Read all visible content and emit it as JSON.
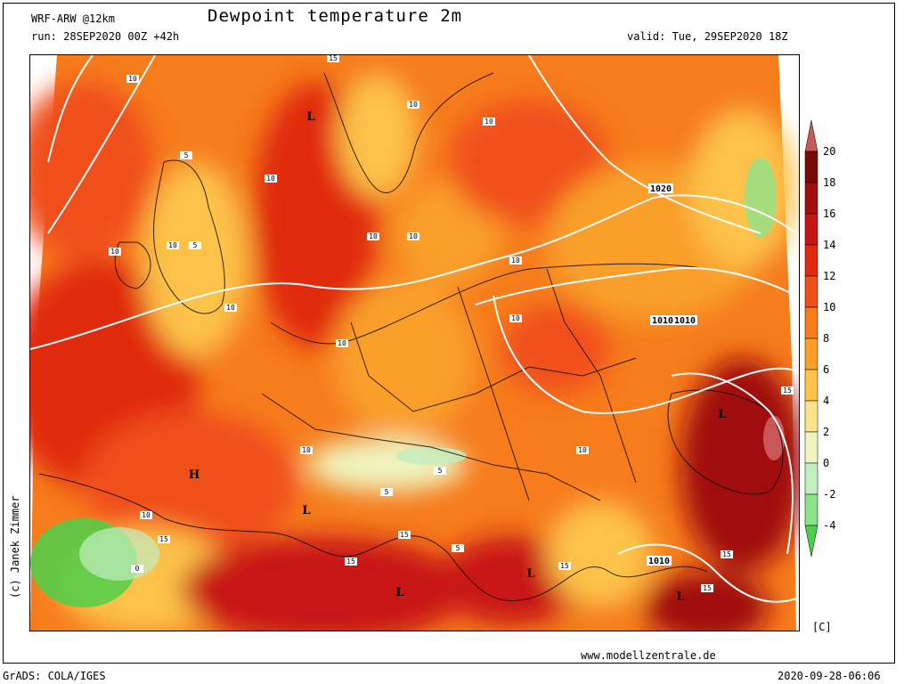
{
  "header": {
    "model": "WRF-ARW @12km",
    "title": "Dewpoint temperature 2m",
    "run": "run: 28SEP2020 00Z +42h",
    "valid": "valid: Tue, 29SEP2020 18Z"
  },
  "footer": {
    "website": "www.modellzentrale.de",
    "software": "GrADS: COLA/IGES",
    "timestamp": "2020-09-28-06:06"
  },
  "credit": "(c) Janek Zimmer",
  "legend": {
    "unit": "[C]",
    "ticks": [
      "20",
      "18",
      "16",
      "14",
      "12",
      "10",
      "8",
      "6",
      "4",
      "2",
      "0",
      "-2",
      "-4"
    ],
    "colors": {
      "20": "#7a0a0a",
      "18": "#a00e0e",
      "16": "#c81414",
      "14": "#e02a10",
      "12": "#f0501a",
      "10": "#f67c1c",
      "8": "#f99f2a",
      "6": "#fcc24a",
      "4": "#fde48a",
      "2": "#f0f5c0",
      "0": "#c2eec0",
      "-2": "#8ee28a",
      "-4": "#4ccf4a"
    }
  },
  "map_labels": {
    "isobars": [
      "1020",
      "1010",
      "1010",
      "1010"
    ],
    "isodrosotherms": [
      "10",
      "10",
      "10",
      "10",
      "10",
      "10",
      "10",
      "10",
      "10",
      "10",
      "10",
      "10",
      "10",
      "10",
      "10",
      "5",
      "5",
      "5",
      "5",
      "5",
      "15",
      "15",
      "15",
      "15",
      "15",
      "15",
      "15",
      "15",
      "0"
    ],
    "pressure_centers": [
      "L",
      "L",
      "L",
      "L",
      "L",
      "L",
      "H"
    ]
  }
}
